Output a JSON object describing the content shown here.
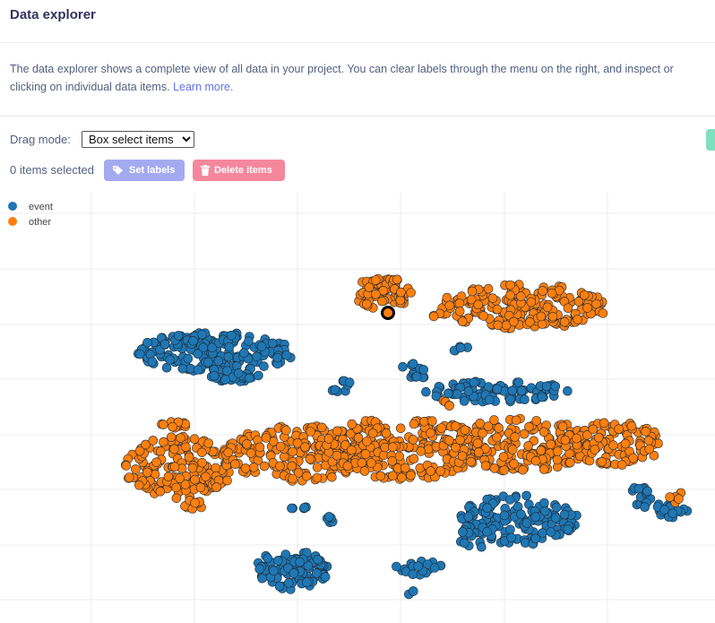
{
  "header": {
    "title": "Data explorer"
  },
  "description": {
    "line1": "The data explorer shows a complete view of all data in your project. You can clear labels through the menu on the right, and inspect or",
    "line2": "clicking on individual data items.",
    "learn_more": "Learn more."
  },
  "controls": {
    "drag_mode_label": "Drag mode:",
    "drag_mode_value": "Box select items",
    "items_selected": "0 items selected",
    "set_labels": "Set labels",
    "delete_items": "Delete items"
  },
  "colors": {
    "event": "#1f77b4",
    "other": "#ff7f0e",
    "accent": "#5e72e4"
  },
  "chart_data": {
    "type": "scatter",
    "legend_position": "top-left",
    "grid": true,
    "series": [
      {
        "name": "event",
        "color": "#1f77b4",
        "clusters": [
          {
            "cx": 240,
            "cy": 393,
            "rx": 88,
            "ry": 22,
            "n": 190
          },
          {
            "cx": 265,
            "cy": 421,
            "rx": 30,
            "ry": 5,
            "n": 22
          },
          {
            "cx": 380,
            "cy": 431,
            "rx": 12,
            "ry": 9,
            "n": 8
          },
          {
            "cx": 462,
            "cy": 414,
            "rx": 18,
            "ry": 10,
            "n": 14
          },
          {
            "cx": 555,
            "cy": 437,
            "rx": 80,
            "ry": 12,
            "n": 90
          },
          {
            "cx": 512,
            "cy": 389,
            "rx": 12,
            "ry": 4,
            "n": 5
          },
          {
            "cx": 335,
            "cy": 568,
            "rx": 10,
            "ry": 4,
            "n": 5
          },
          {
            "cx": 368,
            "cy": 581,
            "rx": 10,
            "ry": 6,
            "n": 6
          },
          {
            "cx": 578,
            "cy": 580,
            "rx": 68,
            "ry": 28,
            "n": 140
          },
          {
            "cx": 532,
            "cy": 597,
            "rx": 22,
            "ry": 14,
            "n": 22
          },
          {
            "cx": 715,
            "cy": 554,
            "rx": 12,
            "ry": 14,
            "n": 16
          },
          {
            "cx": 750,
            "cy": 568,
            "rx": 18,
            "ry": 10,
            "n": 18
          },
          {
            "cx": 325,
            "cy": 636,
            "rx": 42,
            "ry": 22,
            "n": 95
          },
          {
            "cx": 468,
            "cy": 634,
            "rx": 28,
            "ry": 8,
            "n": 22
          },
          {
            "cx": 457,
            "cy": 660,
            "rx": 5,
            "ry": 3,
            "n": 3
          }
        ]
      },
      {
        "name": "other",
        "color": "#ff7f0e",
        "clusters": [
          {
            "cx": 428,
            "cy": 327,
            "rx": 34,
            "ry": 18,
            "n": 70
          },
          {
            "cx": 583,
            "cy": 342,
            "rx": 95,
            "ry": 25,
            "n": 200
          },
          {
            "cx": 485,
            "cy": 351,
            "rx": 8,
            "ry": 2,
            "n": 3
          },
          {
            "cx": 200,
            "cy": 522,
            "rx": 60,
            "ry": 35,
            "n": 160
          },
          {
            "cx": 330,
            "cy": 505,
            "rx": 80,
            "ry": 32,
            "n": 170
          },
          {
            "cx": 450,
            "cy": 500,
            "rx": 90,
            "ry": 35,
            "n": 230
          },
          {
            "cx": 580,
            "cy": 496,
            "rx": 80,
            "ry": 30,
            "n": 160
          },
          {
            "cx": 685,
            "cy": 495,
            "rx": 55,
            "ry": 24,
            "n": 100
          },
          {
            "cx": 195,
            "cy": 474,
            "rx": 15,
            "ry": 6,
            "n": 12
          },
          {
            "cx": 215,
            "cy": 562,
            "rx": 14,
            "ry": 6,
            "n": 10
          },
          {
            "cx": 755,
            "cy": 556,
            "rx": 12,
            "ry": 8,
            "n": 5
          },
          {
            "cx": 492,
            "cy": 450,
            "rx": 14,
            "ry": 4,
            "n": 4
          }
        ],
        "highlighted_point": {
          "x": 433,
          "y": 349
        }
      }
    ]
  }
}
